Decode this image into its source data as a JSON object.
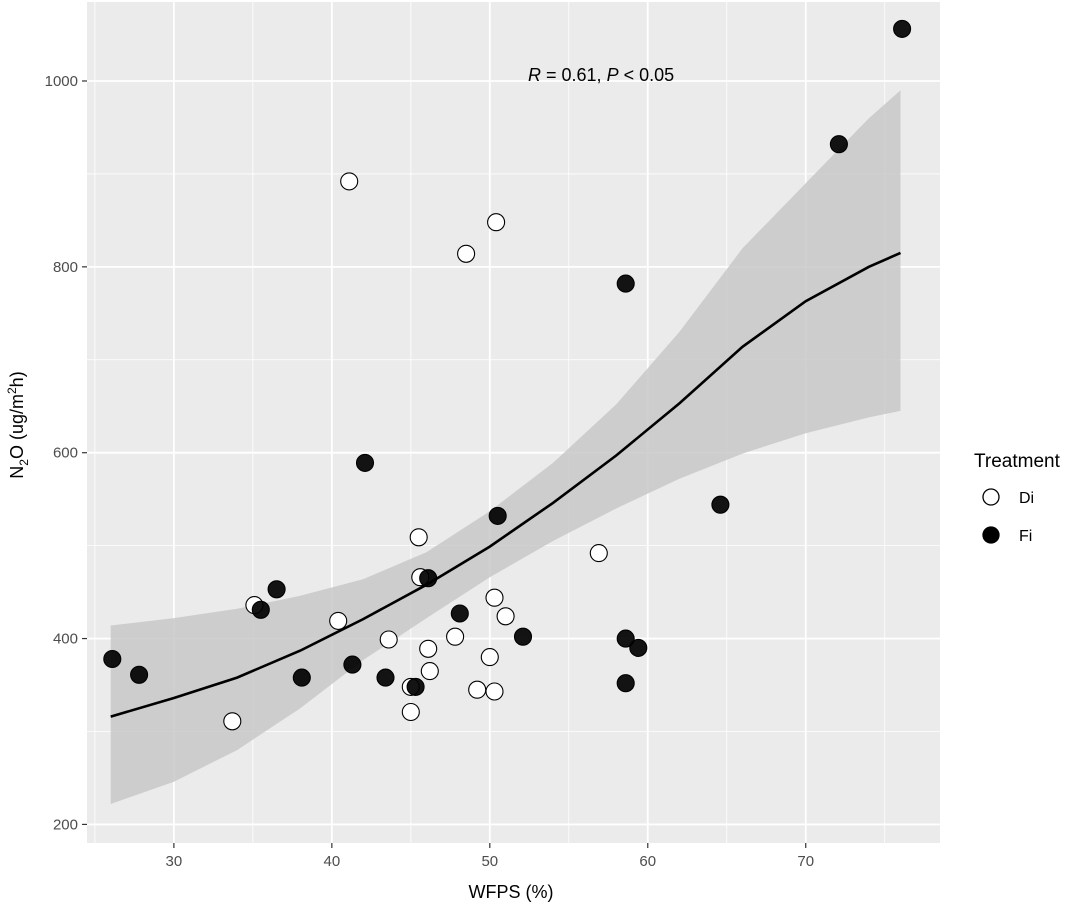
{
  "chart_data": {
    "type": "scatter",
    "xlabel": "WFPS (%)",
    "ylabel": {
      "prefix": "N",
      "sub": "2",
      "mid": "O (ug/m",
      "sup": "2",
      "suffix": "h)"
    },
    "annotation": {
      "r_label": "R",
      "r_text": " = 0.61, ",
      "p_label": "P",
      "p_text": " < 0.05"
    },
    "xlim": [
      24.5,
      78.5
    ],
    "ylim": [
      180,
      1085
    ],
    "xticks": [
      30,
      40,
      50,
      60,
      70
    ],
    "yticks": [
      200,
      400,
      600,
      800,
      1000
    ],
    "grid": true,
    "legend": {
      "title": "Treatment",
      "position": "right",
      "entries": [
        {
          "label": "Di",
          "fill": "#ffffff"
        },
        {
          "label": "Fi",
          "fill": "#000000"
        }
      ]
    },
    "colors": {
      "panel": "#ebebeb",
      "grid": "#ffffff",
      "ribbon": "#c8c8c8",
      "line": "#000000"
    },
    "series": [
      {
        "name": "Di",
        "points": [
          [
            33.7,
            311
          ],
          [
            35.1,
            436
          ],
          [
            40.4,
            419
          ],
          [
            41.1,
            892
          ],
          [
            43.6,
            399
          ],
          [
            45.0,
            348
          ],
          [
            45.0,
            321
          ],
          [
            45.5,
            509
          ],
          [
            45.6,
            466
          ],
          [
            46.1,
            389
          ],
          [
            46.2,
            365
          ],
          [
            47.8,
            402
          ],
          [
            48.5,
            814
          ],
          [
            49.2,
            345
          ],
          [
            50.0,
            380
          ],
          [
            50.3,
            444
          ],
          [
            50.3,
            343
          ],
          [
            50.4,
            848
          ],
          [
            51.0,
            424
          ],
          [
            56.9,
            492
          ]
        ]
      },
      {
        "name": "Fi",
        "points": [
          [
            26.1,
            378
          ],
          [
            27.8,
            361
          ],
          [
            35.5,
            431
          ],
          [
            36.5,
            453
          ],
          [
            38.1,
            358
          ],
          [
            41.3,
            372
          ],
          [
            42.1,
            589
          ],
          [
            43.4,
            358
          ],
          [
            45.3,
            348
          ],
          [
            46.1,
            465
          ],
          [
            48.1,
            427
          ],
          [
            50.5,
            532
          ],
          [
            52.1,
            402
          ],
          [
            58.6,
            782
          ],
          [
            58.6,
            400
          ],
          [
            58.6,
            352
          ],
          [
            59.4,
            390
          ],
          [
            64.6,
            544
          ],
          [
            72.1,
            932
          ],
          [
            76.1,
            1056
          ]
        ]
      }
    ],
    "fit": {
      "type": "exponential",
      "x": [
        26,
        30,
        34,
        38,
        42,
        46,
        50,
        54,
        58,
        62,
        66,
        70,
        74,
        76
      ],
      "y": [
        316,
        336,
        358,
        387,
        421,
        458,
        499,
        546,
        597,
        653,
        714,
        763,
        800,
        815
      ],
      "lower": [
        222,
        246,
        280,
        325,
        377,
        422,
        466,
        505,
        540,
        572,
        599,
        621,
        638,
        645
      ],
      "upper": [
        414,
        422,
        432,
        446,
        464,
        493,
        537,
        589,
        652,
        730,
        820,
        890,
        960,
        990
      ]
    }
  }
}
